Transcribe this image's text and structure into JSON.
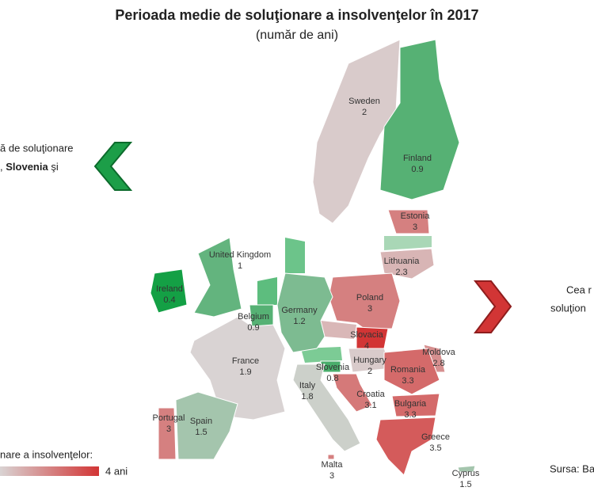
{
  "header": {
    "title": "Perioada medie de soluţionare a insolvenţelor în 2017",
    "subtitle": "(număr de ani)"
  },
  "left_note": {
    "line1": "ă de soluţionare",
    "line2_a": ",",
    "line2_b": "Slovenia",
    "line2_c": "şi"
  },
  "right_note": {
    "line1": "Cea r",
    "line2": "soluţion"
  },
  "legend": {
    "title": "nare a insolvenţelor:",
    "max": {
      "value": 4,
      "label": "4 ani"
    }
  },
  "source": "Sursa: Bar",
  "countries": [
    {
      "name": "Sweden",
      "value": 2
    },
    {
      "name": "Finland",
      "value": 0.9
    },
    {
      "name": "Estonia",
      "value": 3
    },
    {
      "name": "Lithuania",
      "value": 2.3
    },
    {
      "name": "United Kingdom",
      "value": 1
    },
    {
      "name": "Ireland",
      "value": 0.4
    },
    {
      "name": "Poland",
      "value": 3
    },
    {
      "name": "Germany",
      "value": 1.2
    },
    {
      "name": "Belgium",
      "value": 0.9
    },
    {
      "name": "Slovacia",
      "value": 4
    },
    {
      "name": "Moldova",
      "value": 2.8
    },
    {
      "name": "Hungary",
      "value": 2
    },
    {
      "name": "France",
      "value": 1.9
    },
    {
      "name": "Slovenia",
      "value": 0.8
    },
    {
      "name": "Romania",
      "value": 3.3
    },
    {
      "name": "Italy",
      "value": 1.8
    },
    {
      "name": "Croatia",
      "value": 3.1
    },
    {
      "name": "Bulgaria",
      "value": 3.3
    },
    {
      "name": "Portugal",
      "value": 3
    },
    {
      "name": "Spain",
      "value": 1.5
    },
    {
      "name": "Greece",
      "value": 3.5
    },
    {
      "name": "Malta",
      "value": 3
    },
    {
      "name": "Cyprus",
      "value": 1.5
    }
  ]
}
